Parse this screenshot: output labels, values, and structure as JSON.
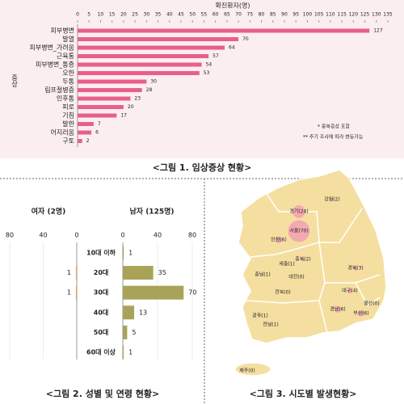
{
  "chart_data": [
    {
      "type": "hbar",
      "xlabel": "확진환자(명)",
      "ylabel": "증상",
      "color": "#e8608a",
      "categories": [
        "피부병변",
        "발열",
        "피부병변_가려움",
        "근육통",
        "피부병변_통증",
        "오한",
        "두통",
        "림프절병증",
        "인후통",
        "피로",
        "기침",
        "발한",
        "어지러움",
        "구토"
      ],
      "values": [
        127,
        70,
        64,
        57,
        54,
        53,
        30,
        28,
        23,
        20,
        17,
        7,
        6,
        2
      ],
      "xlim": [
        0,
        135
      ],
      "xticks": [
        0,
        5,
        10,
        15,
        20,
        25,
        30,
        35,
        40,
        45,
        50,
        55,
        60,
        65,
        70,
        75,
        80,
        85,
        90,
        95,
        100,
        105,
        110,
        115,
        120,
        125,
        130,
        135
      ],
      "notes": [
        "* 중복증상 포함",
        "** 주기 조사에 따라 변동가능"
      ],
      "caption": "<그림 1. 임상증상 현황>"
    },
    {
      "type": "pyramid",
      "categories": [
        "10대 이하",
        "20대",
        "30대",
        "40대",
        "50대",
        "60대 이상"
      ],
      "series": [
        {
          "name": "여자 (2명)",
          "color": "#f0a050",
          "values": [
            0,
            1,
            1,
            0,
            0,
            0
          ],
          "xlim": [
            0,
            80
          ],
          "xticks": [
            80,
            40,
            0
          ]
        },
        {
          "name": "남자 (125명)",
          "color": "#a9a35a",
          "values": [
            1,
            35,
            70,
            13,
            5,
            1
          ],
          "xlim": [
            0,
            80
          ],
          "xticks": [
            0,
            40,
            80
          ]
        }
      ],
      "caption": "<그림 2. 성별 및 연령 현황>"
    },
    {
      "type": "map",
      "color": "#f3a0b4",
      "regions": [
        {
          "label": "경기(24)",
          "value": 24
        },
        {
          "label": "강원(2)",
          "value": 2
        },
        {
          "label": "서울(70)",
          "value": 70
        },
        {
          "label": "인천(6)",
          "value": 6
        },
        {
          "label": "충북(2)",
          "value": 2
        },
        {
          "label": "세종(1)",
          "value": 1
        },
        {
          "label": "충남(1)",
          "value": 1
        },
        {
          "label": "대전(0)",
          "value": 0
        },
        {
          "label": "경북(3)",
          "value": 3
        },
        {
          "label": "대구(4)",
          "value": 4
        },
        {
          "label": "전북(0)",
          "value": 0
        },
        {
          "label": "울산(0)",
          "value": 0
        },
        {
          "label": "경남(6)",
          "value": 6
        },
        {
          "label": "부산(6)",
          "value": 6
        },
        {
          "label": "광주(1)",
          "value": 1
        },
        {
          "label": "전남(1)",
          "value": 1
        },
        {
          "label": "제주(0)",
          "value": 0
        }
      ],
      "caption": "<그림 3. 시도별 발생현황>"
    }
  ]
}
